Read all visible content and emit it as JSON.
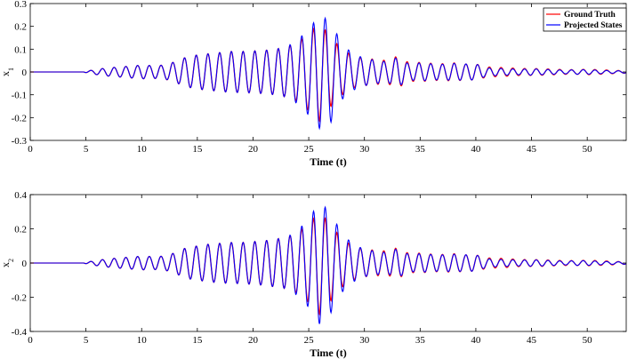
{
  "chart_data": [
    {
      "type": "line",
      "title": "",
      "xlabel": "Time (t)",
      "ylabel": "x",
      "ylabel_sub": "1",
      "xlim": [
        0,
        53.5
      ],
      "ylim": [
        -0.3,
        0.3
      ],
      "x_ticks": [
        "0",
        "5",
        "10",
        "15",
        "20",
        "25",
        "30",
        "35",
        "40",
        "45",
        "50"
      ],
      "x_tick_values": [
        0,
        5,
        10,
        15,
        20,
        25,
        30,
        35,
        40,
        45,
        50
      ],
      "y_ticks": [
        "-0.3",
        "-0.2",
        "-0.1",
        "0",
        "0.1",
        "0.2",
        "0.3"
      ],
      "y_tick_values": [
        -0.3,
        -0.2,
        -0.1,
        0,
        0.1,
        0.2,
        0.3
      ],
      "legend": {
        "placement": "top-right",
        "entries": [
          "Ground Truth",
          "Projected States"
        ]
      },
      "series": [
        {
          "name": "Ground Truth",
          "color": "#ff0000",
          "x": [
            0,
            4.8,
            5.0,
            6.0,
            7.0,
            8.0,
            9.0,
            10.0,
            11.0,
            12.0,
            13.0,
            14.0,
            15.0,
            16.0,
            17.0,
            18.0,
            19.0,
            20.0,
            21.0,
            22.0,
            23.0,
            24.0,
            25.0,
            26.0,
            27.0,
            28.0,
            29.0,
            30.0,
            31.0,
            32.0,
            33.0,
            34.0,
            35.0,
            36.0,
            37.0,
            38.0,
            39.0,
            40.0,
            41.0,
            42.0,
            43.0,
            44.0,
            45.0,
            46.0,
            47.0,
            48.0,
            49.0,
            50.0,
            51.0,
            52.0,
            53.0,
            53.5
          ],
          "env": [
            0,
            0,
            0.003,
            0.012,
            0.018,
            0.022,
            0.026,
            0.03,
            0.028,
            0.03,
            0.045,
            0.065,
            0.075,
            0.08,
            0.085,
            0.09,
            0.09,
            0.092,
            0.095,
            0.1,
            0.11,
            0.13,
            0.17,
            0.215,
            0.15,
            0.1,
            0.07,
            0.06,
            0.055,
            0.05,
            0.07,
            0.04,
            0.042,
            0.038,
            0.036,
            0.04,
            0.035,
            0.035,
            0.022,
            0.02,
            0.018,
            0.015,
            0.015,
            0.014,
            0.012,
            0.01,
            0.01,
            0.012,
            0.01,
            0.008,
            0.006,
            0.005
          ]
        },
        {
          "name": "Projected States",
          "color": "#0000ff",
          "x": [
            0,
            4.8,
            5.0,
            6.0,
            7.0,
            8.0,
            9.0,
            10.0,
            11.0,
            12.0,
            13.0,
            14.0,
            15.0,
            16.0,
            17.0,
            18.0,
            19.0,
            20.0,
            21.0,
            22.0,
            23.0,
            24.0,
            25.0,
            26.0,
            27.0,
            28.0,
            29.0,
            30.0,
            31.0,
            32.0,
            33.0,
            34.0,
            35.0,
            36.0,
            37.0,
            38.0,
            39.0,
            40.0,
            41.0,
            42.0,
            43.0,
            44.0,
            45.0,
            46.0,
            47.0,
            48.0,
            49.0,
            50.0,
            51.0,
            52.0,
            53.0,
            53.5
          ],
          "env": [
            0,
            0,
            0.003,
            0.012,
            0.018,
            0.022,
            0.026,
            0.03,
            0.028,
            0.03,
            0.045,
            0.065,
            0.075,
            0.08,
            0.085,
            0.09,
            0.09,
            0.092,
            0.095,
            0.1,
            0.11,
            0.14,
            0.19,
            0.25,
            0.22,
            0.12,
            0.08,
            0.06,
            0.052,
            0.045,
            0.065,
            0.035,
            0.04,
            0.036,
            0.034,
            0.038,
            0.035,
            0.035,
            0.018,
            0.016,
            0.014,
            0.012,
            0.014,
            0.012,
            0.01,
            0.008,
            0.01,
            0.01,
            0.008,
            0.006,
            0.005,
            0.005
          ]
        }
      ]
    },
    {
      "type": "line",
      "title": "",
      "xlabel": "Time (t)",
      "ylabel": "x",
      "ylabel_sub": "2",
      "xlim": [
        0,
        53.5
      ],
      "ylim": [
        -0.4,
        0.4
      ],
      "x_ticks": [
        "0",
        "5",
        "10",
        "15",
        "20",
        "25",
        "30",
        "35",
        "40",
        "45",
        "50"
      ],
      "x_tick_values": [
        0,
        5,
        10,
        15,
        20,
        25,
        30,
        35,
        40,
        45,
        50
      ],
      "y_ticks": [
        "-0.4",
        "-0.2",
        "0",
        "0.2",
        "0.4"
      ],
      "y_tick_values": [
        -0.4,
        -0.2,
        0,
        0.2,
        0.4
      ],
      "series": [
        {
          "name": "Ground Truth",
          "color": "#ff0000",
          "x": [
            0,
            4.8,
            5.0,
            6.0,
            7.0,
            8.0,
            9.0,
            10.0,
            11.0,
            12.0,
            13.0,
            14.0,
            15.0,
            16.0,
            17.0,
            18.0,
            19.0,
            20.0,
            21.0,
            22.0,
            23.0,
            24.0,
            25.0,
            26.0,
            27.0,
            28.0,
            29.0,
            30.0,
            31.0,
            32.0,
            33.0,
            34.0,
            35.0,
            36.0,
            37.0,
            38.0,
            39.0,
            40.0,
            41.0,
            42.0,
            43.0,
            44.0,
            45.0,
            46.0,
            47.0,
            48.0,
            49.0,
            50.0,
            51.0,
            52.0,
            53.0,
            53.5
          ],
          "env": [
            0,
            0,
            0.004,
            0.016,
            0.024,
            0.03,
            0.035,
            0.04,
            0.038,
            0.04,
            0.06,
            0.09,
            0.1,
            0.11,
            0.115,
            0.12,
            0.12,
            0.125,
            0.13,
            0.14,
            0.15,
            0.18,
            0.23,
            0.3,
            0.22,
            0.14,
            0.1,
            0.08,
            0.075,
            0.07,
            0.09,
            0.055,
            0.058,
            0.052,
            0.05,
            0.055,
            0.048,
            0.048,
            0.03,
            0.028,
            0.025,
            0.02,
            0.02,
            0.019,
            0.016,
            0.014,
            0.014,
            0.016,
            0.014,
            0.011,
            0.008,
            0.007
          ]
        },
        {
          "name": "Projected States",
          "color": "#0000ff",
          "x": [
            0,
            4.8,
            5.0,
            6.0,
            7.0,
            8.0,
            9.0,
            10.0,
            11.0,
            12.0,
            13.0,
            14.0,
            15.0,
            16.0,
            17.0,
            18.0,
            19.0,
            20.0,
            21.0,
            22.0,
            23.0,
            24.0,
            25.0,
            26.0,
            27.0,
            28.0,
            29.0,
            30.0,
            31.0,
            32.0,
            33.0,
            34.0,
            35.0,
            36.0,
            37.0,
            38.0,
            39.0,
            40.0,
            41.0,
            42.0,
            43.0,
            44.0,
            45.0,
            46.0,
            47.0,
            48.0,
            49.0,
            50.0,
            51.0,
            52.0,
            53.0,
            53.5
          ],
          "env": [
            0,
            0,
            0.004,
            0.016,
            0.024,
            0.03,
            0.035,
            0.04,
            0.038,
            0.04,
            0.06,
            0.09,
            0.1,
            0.11,
            0.115,
            0.12,
            0.12,
            0.125,
            0.13,
            0.14,
            0.15,
            0.19,
            0.26,
            0.36,
            0.29,
            0.17,
            0.11,
            0.08,
            0.07,
            0.062,
            0.085,
            0.05,
            0.055,
            0.05,
            0.048,
            0.052,
            0.048,
            0.048,
            0.025,
            0.022,
            0.02,
            0.017,
            0.019,
            0.017,
            0.014,
            0.011,
            0.014,
            0.014,
            0.011,
            0.008,
            0.007,
            0.007
          ]
        }
      ]
    }
  ]
}
